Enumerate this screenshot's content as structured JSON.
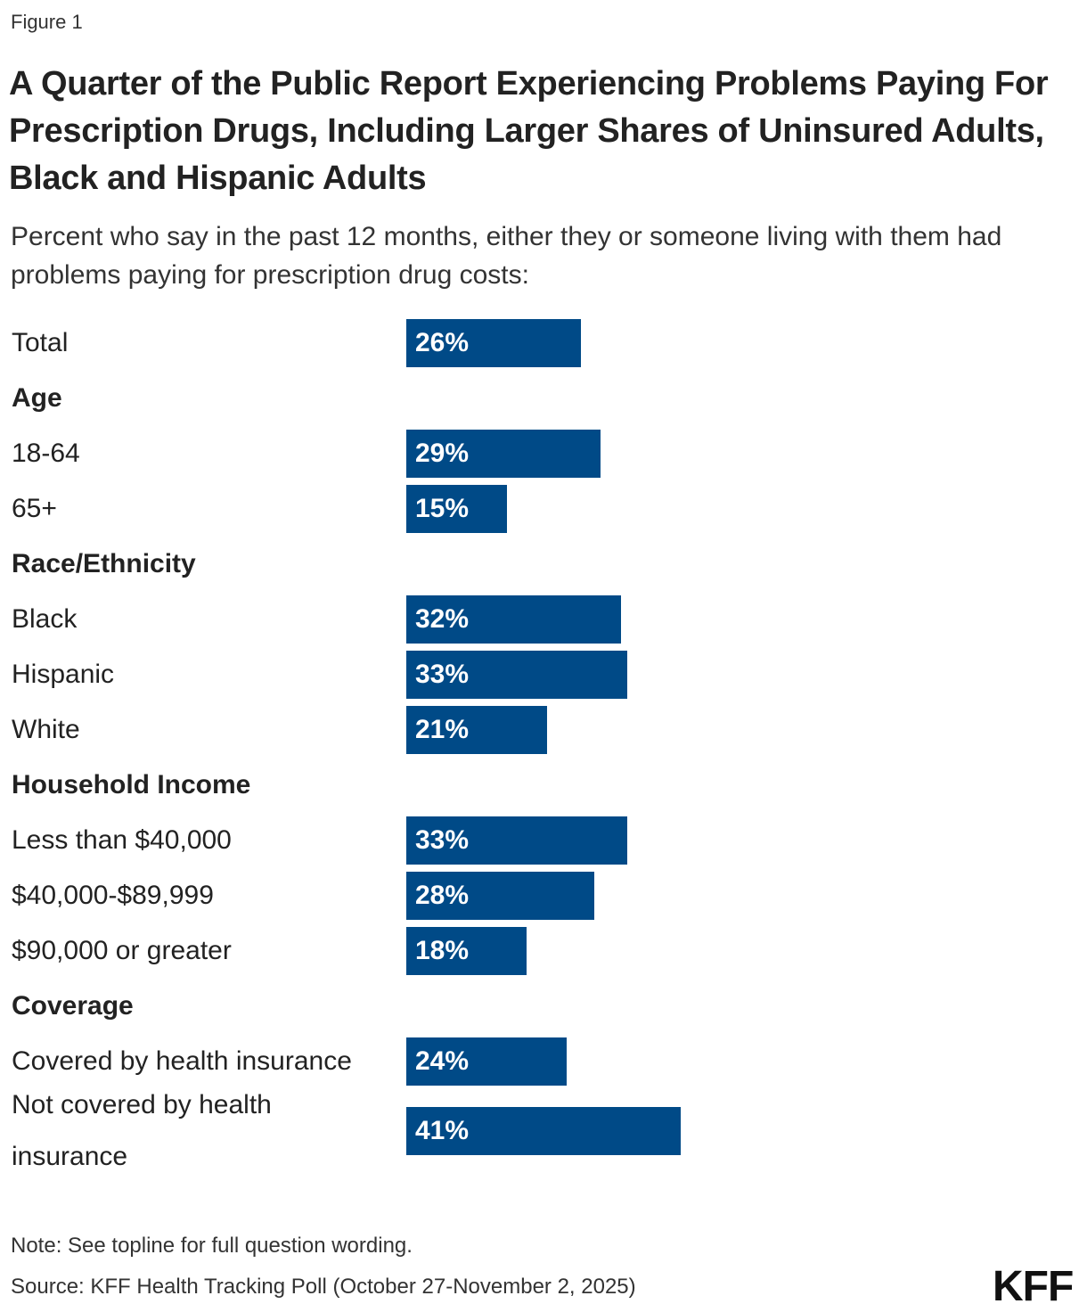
{
  "figure_label": "Figure 1",
  "title": "A Quarter of the Public Report Experiencing Problems Paying For Prescription Drugs, Including Larger Shares of Uninsured Adults, Black and Hispanic Adults",
  "subtitle": "Percent who say in the past 12 months, either they or someone living with them had problems paying for prescription drug costs:",
  "note": "Note: See topline for full question wording.",
  "source": "Source: KFF Health Tracking Poll (October 27-November 2, 2025)",
  "logo": "KFF",
  "colors": {
    "bar": "#004a87"
  },
  "chart_data": {
    "type": "bar",
    "orientation": "horizontal",
    "unit": "%",
    "xlim": [
      0,
      100
    ],
    "grid": false,
    "rows": [
      {
        "kind": "item",
        "label": "Total",
        "value": 26,
        "value_label": "26%"
      },
      {
        "kind": "heading",
        "label": "Age"
      },
      {
        "kind": "item",
        "label": "18-64",
        "value": 29,
        "value_label": "29%"
      },
      {
        "kind": "item",
        "label": "65+",
        "value": 15,
        "value_label": "15%"
      },
      {
        "kind": "heading",
        "label": "Race/Ethnicity"
      },
      {
        "kind": "item",
        "label": "Black",
        "value": 32,
        "value_label": "32%"
      },
      {
        "kind": "item",
        "label": "Hispanic",
        "value": 33,
        "value_label": "33%"
      },
      {
        "kind": "item",
        "label": "White",
        "value": 21,
        "value_label": "21%"
      },
      {
        "kind": "heading",
        "label": "Household Income"
      },
      {
        "kind": "item",
        "label": "Less than $40,000",
        "value": 33,
        "value_label": "33%"
      },
      {
        "kind": "item",
        "label": "$40,000-$89,999",
        "value": 28,
        "value_label": "28%"
      },
      {
        "kind": "item",
        "label": "$90,000 or greater",
        "value": 18,
        "value_label": "18%"
      },
      {
        "kind": "heading",
        "label": "Coverage"
      },
      {
        "kind": "item",
        "label": "Covered by health insurance",
        "value": 24,
        "value_label": "24%"
      },
      {
        "kind": "item",
        "label": "Not covered by health insurance",
        "value": 41,
        "value_label": "41%"
      }
    ]
  }
}
